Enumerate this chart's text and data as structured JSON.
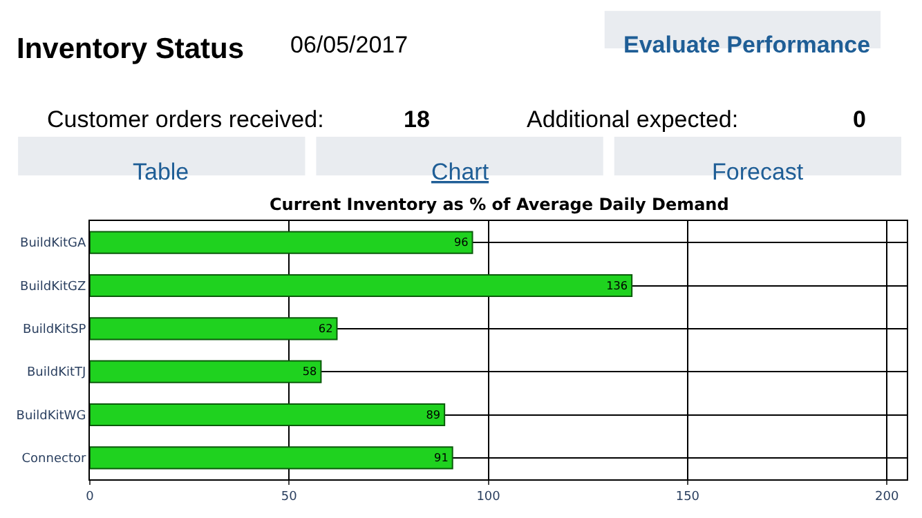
{
  "chart_data": {
    "type": "bar",
    "orientation": "horizontal",
    "title": "Current Inventory as % of Average Daily Demand",
    "categories": [
      "BuildKitGA",
      "BuildKitGZ",
      "BuildKitSP",
      "BuildKitTJ",
      "BuildKitWG",
      "Connector"
    ],
    "values": [
      96,
      136,
      62,
      58,
      89,
      91
    ],
    "color": "#1fd21f",
    "data_labels": true,
    "xlim": [
      0,
      205
    ],
    "xticks": [
      0,
      50,
      100,
      150,
      200
    ],
    "grid": true,
    "annotations": [
      "Inventory Status",
      "06/05/2017",
      "Evaluate Performance",
      "Customer orders received:",
      "18",
      "Additional expected:",
      "0",
      "Table",
      "Chart",
      "Forecast"
    ]
  }
}
